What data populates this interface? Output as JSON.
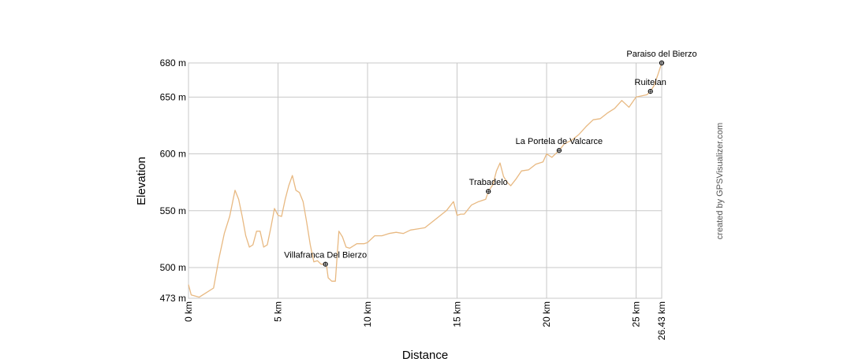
{
  "credit": "created by GPSVisualizer.com",
  "chart_data": {
    "type": "line",
    "title": "",
    "xlabel": "Distance",
    "ylabel": "Elevation",
    "xlim": [
      0,
      26.43
    ],
    "ylim": [
      473,
      680
    ],
    "grid": true,
    "line_color": "#e8b982",
    "x_ticks": [
      {
        "value": 0,
        "label": "0 km"
      },
      {
        "value": 5,
        "label": "5 km"
      },
      {
        "value": 10,
        "label": "10 km"
      },
      {
        "value": 15,
        "label": "15 km"
      },
      {
        "value": 20,
        "label": "20 km"
      },
      {
        "value": 25,
        "label": "25 km"
      },
      {
        "value": 26.43,
        "label": "26.43 km"
      }
    ],
    "y_ticks": [
      {
        "value": 473,
        "label": "473 m"
      },
      {
        "value": 500,
        "label": "500 m"
      },
      {
        "value": 550,
        "label": "550 m"
      },
      {
        "value": 600,
        "label": "600 m"
      },
      {
        "value": 650,
        "label": "650 m"
      },
      {
        "value": 680,
        "label": "680 m"
      }
    ],
    "series": [
      {
        "x": [
          0,
          0.15,
          0.6,
          1.0,
          1.4,
          1.7,
          2.0,
          2.3,
          2.6,
          2.8,
          3.0,
          3.2,
          3.4,
          3.6,
          3.8,
          4.0,
          4.2,
          4.4,
          4.6,
          4.8,
          5.0,
          5.2,
          5.4,
          5.6,
          5.8,
          6.0,
          6.2,
          6.4,
          6.6,
          6.8,
          7.0,
          7.2,
          7.4,
          7.6,
          7.7,
          7.8,
          8.0,
          8.2,
          8.4,
          8.6,
          8.8,
          9.0,
          9.2,
          9.4,
          9.6,
          9.8,
          10.0,
          10.4,
          10.8,
          11.2,
          11.6,
          12.0,
          12.4,
          12.8,
          13.2,
          13.6,
          14.0,
          14.4,
          14.8,
          15.0,
          15.2,
          15.4,
          15.8,
          16.2,
          16.6,
          16.75,
          17.0,
          17.2,
          17.4,
          17.6,
          17.8,
          18.0,
          18.3,
          18.6,
          19.0,
          19.4,
          19.8,
          20.0,
          20.3,
          20.7,
          21.0,
          21.4,
          21.8,
          22.2,
          22.6,
          23.0,
          23.4,
          23.8,
          24.2,
          24.6,
          25.0,
          25.3,
          25.6,
          25.8,
          26.0,
          26.2,
          26.43
        ],
        "y": [
          485,
          476,
          474,
          478,
          482,
          508,
          530,
          545,
          568,
          560,
          545,
          528,
          518,
          520,
          532,
          532,
          518,
          520,
          535,
          552,
          546,
          545,
          560,
          572,
          581,
          568,
          566,
          558,
          540,
          520,
          505,
          506,
          503,
          503,
          503,
          491,
          488,
          488,
          532,
          527,
          518,
          517,
          519,
          521,
          521,
          521,
          522,
          528,
          528,
          530,
          531,
          530,
          533,
          534,
          535,
          540,
          545,
          550,
          558,
          546,
          547,
          547,
          555,
          558,
          560,
          567,
          573,
          585,
          592,
          580,
          575,
          572,
          578,
          585,
          586,
          591,
          593,
          600,
          597,
          603,
          609,
          612,
          617,
          624,
          630,
          631,
          636,
          640,
          647,
          641,
          650,
          651,
          652,
          655,
          660,
          669,
          680
        ]
      }
    ],
    "waypoints": [
      {
        "name": "Villafranca Del Bierzo",
        "x": 7.65,
        "y": 503
      },
      {
        "name": "Trabadelo",
        "x": 16.75,
        "y": 567
      },
      {
        "name": "La Portela de Valcarce",
        "x": 20.7,
        "y": 603
      },
      {
        "name": "Ruitelan",
        "x": 25.8,
        "y": 655
      },
      {
        "name": "Paraiso del Bierzo",
        "x": 26.43,
        "y": 680
      }
    ]
  }
}
